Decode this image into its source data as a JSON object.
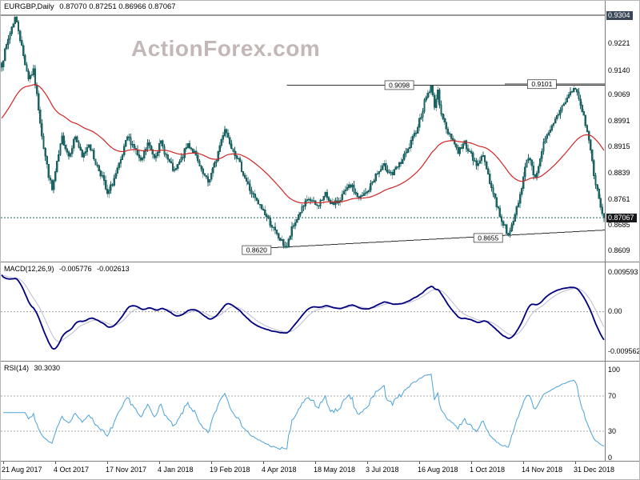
{
  "header": {
    "symbol": "EURGBP,Daily",
    "ohlc": "0.87070 0.87251 0.86966 0.87067",
    "watermark": "ActionForex.com"
  },
  "colors": {
    "candle": "#1d6363",
    "ma": "#cf2525",
    "macd": "#00007f",
    "macd_signal": "#bcbcd4",
    "rsi": "#4ba2d9",
    "object_line": "#333333",
    "watermark": "#c3b7b7",
    "badge_dark": "#3a4757",
    "badge_black": "#17181c",
    "separator": "#7d7d7d"
  },
  "chart_data": {
    "type": "candlestick",
    "symbol": "EURGBP",
    "timeframe": "Daily",
    "ohlc_display": {
      "open": "0.87070",
      "high": "0.87251",
      "low": "0.86966",
      "close": "0.87067"
    },
    "candles": 360,
    "seed": 7,
    "noise": 0.0009,
    "wick": 0.0014,
    "clamp_high": 0.93045,
    "clamp_low": 0.8616,
    "ylim": [
      0.8577,
      0.9347
    ],
    "close_anchors": [
      [
        0,
        0.916
      ],
      [
        3,
        0.9215
      ],
      [
        6,
        0.927
      ],
      [
        8,
        0.9298
      ],
      [
        10,
        0.9262
      ],
      [
        13,
        0.9185
      ],
      [
        16,
        0.912
      ],
      [
        19,
        0.9138
      ],
      [
        22,
        0.903
      ],
      [
        25,
        0.8915
      ],
      [
        28,
        0.8832
      ],
      [
        30,
        0.8788
      ],
      [
        33,
        0.8865
      ],
      [
        36,
        0.8942
      ],
      [
        40,
        0.889
      ],
      [
        44,
        0.8948
      ],
      [
        48,
        0.8882
      ],
      [
        52,
        0.8928
      ],
      [
        56,
        0.8868
      ],
      [
        60,
        0.8828
      ],
      [
        63,
        0.8772
      ],
      [
        67,
        0.8822
      ],
      [
        71,
        0.8872
      ],
      [
        75,
        0.8945
      ],
      [
        79,
        0.8915
      ],
      [
        83,
        0.8868
      ],
      [
        87,
        0.8925
      ],
      [
        91,
        0.8888
      ],
      [
        95,
        0.8928
      ],
      [
        99,
        0.8878
      ],
      [
        103,
        0.884
      ],
      [
        107,
        0.8878
      ],
      [
        111,
        0.8925
      ],
      [
        115,
        0.8898
      ],
      [
        119,
        0.8842
      ],
      [
        123,
        0.8812
      ],
      [
        127,
        0.8862
      ],
      [
        130,
        0.892
      ],
      [
        133,
        0.8972
      ],
      [
        136,
        0.893
      ],
      [
        140,
        0.8888
      ],
      [
        144,
        0.8838
      ],
      [
        148,
        0.879
      ],
      [
        152,
        0.8752
      ],
      [
        156,
        0.8728
      ],
      [
        160,
        0.8692
      ],
      [
        164,
        0.8655
      ],
      [
        168,
        0.8628
      ],
      [
        170,
        0.862
      ],
      [
        173,
        0.8672
      ],
      [
        178,
        0.8725
      ],
      [
        183,
        0.8762
      ],
      [
        188,
        0.874
      ],
      [
        193,
        0.8775
      ],
      [
        198,
        0.8742
      ],
      [
        203,
        0.8772
      ],
      [
        208,
        0.8802
      ],
      [
        213,
        0.8762
      ],
      [
        218,
        0.8782
      ],
      [
        223,
        0.8832
      ],
      [
        228,
        0.8858
      ],
      [
        233,
        0.8835
      ],
      [
        238,
        0.887
      ],
      [
        242,
        0.8905
      ],
      [
        246,
        0.895
      ],
      [
        250,
        0.901
      ],
      [
        253,
        0.9065
      ],
      [
        256,
        0.909
      ],
      [
        258,
        0.904
      ],
      [
        260,
        0.9075
      ],
      [
        262,
        0.902
      ],
      [
        265,
        0.8965
      ],
      [
        268,
        0.8948
      ],
      [
        272,
        0.8902
      ],
      [
        276,
        0.8928
      ],
      [
        280,
        0.889
      ],
      [
        283,
        0.8858
      ],
      [
        286,
        0.8895
      ],
      [
        289,
        0.8855
      ],
      [
        292,
        0.8795
      ],
      [
        295,
        0.8745
      ],
      [
        298,
        0.87
      ],
      [
        301,
        0.8668
      ],
      [
        303,
        0.866
      ],
      [
        306,
        0.8715
      ],
      [
        309,
        0.8775
      ],
      [
        312,
        0.8852
      ],
      [
        314,
        0.889
      ],
      [
        316,
        0.8862
      ],
      [
        318,
        0.882
      ],
      [
        320,
        0.8865
      ],
      [
        323,
        0.8925
      ],
      [
        327,
        0.8962
      ],
      [
        331,
        0.9005
      ],
      [
        335,
        0.9045
      ],
      [
        339,
        0.9075
      ],
      [
        342,
        0.909
      ],
      [
        345,
        0.904
      ],
      [
        348,
        0.8985
      ],
      [
        350,
        0.8935
      ],
      [
        352,
        0.8872
      ],
      [
        354,
        0.8805
      ],
      [
        356,
        0.876
      ],
      [
        358,
        0.8715
      ],
      [
        359,
        0.8707
      ]
    ],
    "ma": {
      "period": 55,
      "init": 0.8995
    },
    "lines": {
      "high_line": {
        "price": 0.9304,
        "label": "0.9304"
      },
      "current": {
        "price": 0.87067,
        "label": "0.87067"
      },
      "res1": {
        "price": 0.9098,
        "from_index": 170,
        "label": "0.9098",
        "label_index": 237
      },
      "res2": {
        "price": 0.9101,
        "from_index": 300,
        "label": "0.9101",
        "label_index": 322
      },
      "trend": {
        "from": [
          157,
          0.8617
        ],
        "to": [
          360,
          0.867
        ],
        "labels": [
          {
            "text": "0.8620",
            "index": 152,
            "price": 0.8611
          },
          {
            "text": "0.8655",
            "index": 290,
            "price": 0.8647
          }
        ]
      }
    },
    "price_axis": [
      {
        "text": "0.9304",
        "price": 0.9304,
        "badge": "dark"
      },
      {
        "text": "0.9221",
        "price": 0.9221
      },
      {
        "text": "0.9140",
        "price": 0.914
      },
      {
        "text": "0.9069",
        "price": 0.9069
      },
      {
        "text": "0.8991",
        "price": 0.8991
      },
      {
        "text": "0.8915",
        "price": 0.8915
      },
      {
        "text": "0.8839",
        "price": 0.8839
      },
      {
        "text": "0.8761",
        "price": 0.8761
      },
      {
        "text": "0.87067",
        "price": 0.87067,
        "badge": "black"
      },
      {
        "text": "0.8685",
        "price": 0.8685
      },
      {
        "text": "0.8609",
        "price": 0.8609
      }
    ],
    "macd": {
      "label": "MACD(12,26,9)",
      "value": "-0.005776",
      "signal": "-0.002613",
      "scale_max": 0.009593,
      "scale_min": -0.009562,
      "init_gap": 0.0096,
      "axis": [
        {
          "text": "0.009593",
          "v": 0.009593
        },
        {
          "text": "0.00",
          "v": 0
        },
        {
          "text": "-0.009562",
          "v": -0.009562
        }
      ]
    },
    "rsi": {
      "label": "RSI(14)",
      "value": "30.3030",
      "levels": [
        70,
        30
      ],
      "axis": [
        {
          "text": "100",
          "v": 100
        },
        {
          "text": "70",
          "v": 70
        },
        {
          "text": "30",
          "v": 30
        },
        {
          "text": "0",
          "v": 0
        }
      ]
    },
    "tick_step": 31,
    "time_axis": [
      "21 Aug 2017",
      "4 Oct 2017",
      "17 Nov 2017",
      "4 Jan 2018",
      "19 Feb 2018",
      "4 Apr 2018",
      "18 May 2018",
      "3 Jul 2018",
      "16 Aug 2018",
      "1 Oct 2018",
      "14 Nov 2018",
      "31 Dec 2018"
    ]
  }
}
